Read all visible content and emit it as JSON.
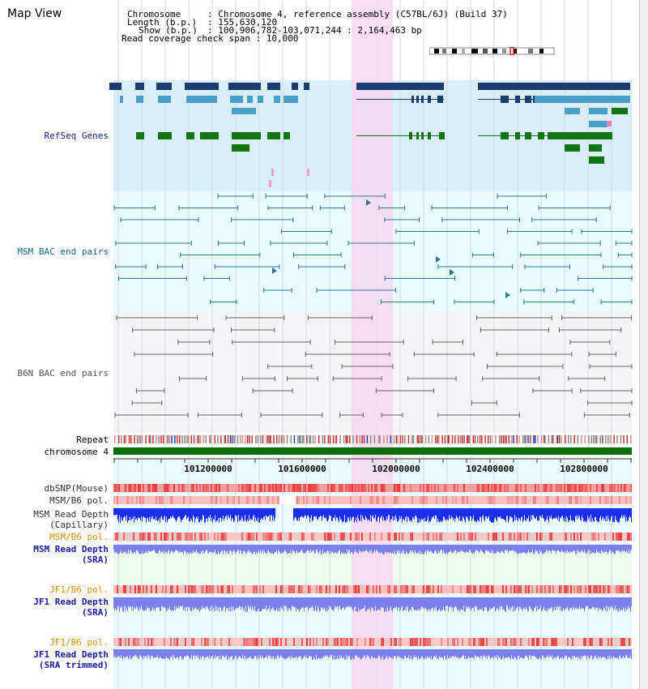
{
  "view_title": "Map View",
  "info": {
    "chromosome_key": "Chromosome",
    "chromosome_val": ": Chromosome 4, reference assembly (C57BL/6J) (Build 37)",
    "length_key": "Length (b.p.)",
    "length_val": ": 155,630,120",
    "show_key": "Show (b.p.)",
    "show_val": ": 100,906,782-103,071,244 : 2,164,463 bp",
    "coverage": "Read coverage check span : 10,000"
  },
  "tracks": {
    "refseq": "RefSeq Genes",
    "msm_bac": "MSM BAC end pairs",
    "b6n_bac": "B6N BAC end pairs",
    "repeat": "Repeat",
    "chromosome": "chromosome 4",
    "dbsnp": "dbSNP(Mouse)",
    "msm_b6_pol_1": "MSM/B6 pol.",
    "msm_depth_cap_1": "MSM Read Depth",
    "msm_depth_cap_2": "(Capillary)",
    "msm_b6_pol_2": "MSM/B6 pol.",
    "msm_depth_sra_1": "MSM Read Depth",
    "msm_depth_sra_2": "(SRA)",
    "jf1_pol_1": "JF1/B6 pol.",
    "jf1_depth_sra_1": "JF1 Read Depth",
    "jf1_depth_sra_2": "(SRA)",
    "jf1_pol_2": "JF1/B6 pol.",
    "jf1_depth_trim_1": "JF1 Read Depth",
    "jf1_depth_trim_2": "(SRA trimmed)"
  },
  "axis_ticks": [
    "101200000",
    "101600000",
    "102000000",
    "102400000",
    "102800000"
  ],
  "colors": {
    "refseq_bg": "#d8eef8",
    "msm_bg": "#e8fafa",
    "b6n_bg": "#f4f4f6",
    "highlight": "#f8d8f0",
    "navy": "#1a3c6e",
    "steel": "#4aa0c8",
    "green": "#127512",
    "bac_line": "#2a7a9a",
    "b6n_line": "#666666",
    "depth_blue": "#1a2ef0",
    "depth_light": "#7a80f0",
    "snp_red": "#e83a3a",
    "chr_green": "#0a6e0a",
    "label_navy": "#1a1a9a",
    "label_orange": "#e09000",
    "label_teal": "#1a6a8a"
  }
}
